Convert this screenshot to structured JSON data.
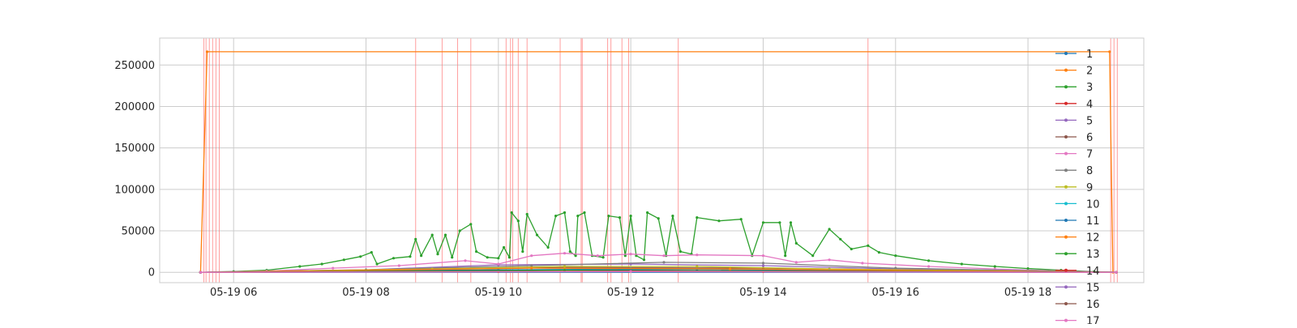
{
  "chart_data": {
    "type": "line",
    "title": "",
    "xlabel": "",
    "ylabel": "",
    "x_time_format": "MM-DD HH",
    "xlim": [
      "2024-05-19T04:53:00",
      "2024-05-19T19:45:00"
    ],
    "ylim": [
      -12500,
      282500
    ],
    "x_ticks": [
      {
        "label": "05-19 06",
        "t": "2024-05-19T06:00:00"
      },
      {
        "label": "05-19 08",
        "t": "2024-05-19T08:00:00"
      },
      {
        "label": "05-19 10",
        "t": "2024-05-19T10:00:00"
      },
      {
        "label": "05-19 12",
        "t": "2024-05-19T12:00:00"
      },
      {
        "label": "05-19 14",
        "t": "2024-05-19T14:00:00"
      },
      {
        "label": "05-19 16",
        "t": "2024-05-19T16:00:00"
      },
      {
        "label": "05-19 18",
        "t": "2024-05-19T18:00:00"
      }
    ],
    "y_ticks": [
      0,
      50000,
      100000,
      150000,
      200000,
      250000
    ],
    "grid": true,
    "legend": "right",
    "event_lines": {
      "color": "#ff7f7f",
      "times": [
        "2024-05-19T05:33:00",
        "2024-05-19T05:35:00",
        "2024-05-19T05:38:00",
        "2024-05-19T05:41:00",
        "2024-05-19T05:44:00",
        "2024-05-19T05:47:00",
        "2024-05-19T08:45:00",
        "2024-05-19T09:09:00",
        "2024-05-19T09:23:00",
        "2024-05-19T09:35:00",
        "2024-05-19T10:07:00",
        "2024-05-19T10:11:00",
        "2024-05-19T10:13:00",
        "2024-05-19T10:18:00",
        "2024-05-19T10:26:00",
        "2024-05-19T10:56:00",
        "2024-05-19T11:15:00",
        "2024-05-19T11:16:00",
        "2024-05-19T11:39:00",
        "2024-05-19T11:42:00",
        "2024-05-19T11:52:00",
        "2024-05-19T11:58:00",
        "2024-05-19T12:43:00",
        "2024-05-19T15:35:00",
        "2024-05-19T19:15:00",
        "2024-05-19T19:18:00",
        "2024-05-19T19:21:00"
      ]
    },
    "series": [
      {
        "name": "1",
        "color": "#1f77b4",
        "points": [
          [
            "2024-05-19T05:30:00",
            0
          ],
          [
            "2024-05-19T19:20:00",
            0
          ]
        ]
      },
      {
        "name": "2",
        "color": "#ff7f0e",
        "points": [
          [
            "2024-05-19T05:30:00",
            0
          ],
          [
            "2024-05-19T05:36:00",
            266000
          ],
          [
            "2024-05-19T19:14:00",
            266000
          ],
          [
            "2024-05-19T19:17:00",
            0
          ]
        ]
      },
      {
        "name": "3",
        "color": "#2ca02c",
        "points": [
          [
            "2024-05-19T05:30:00",
            0
          ],
          [
            "2024-05-19T06:00:00",
            1000
          ],
          [
            "2024-05-19T06:30:00",
            2500
          ],
          [
            "2024-05-19T07:00:00",
            7000
          ],
          [
            "2024-05-19T07:20:00",
            10000
          ],
          [
            "2024-05-19T07:40:00",
            15000
          ],
          [
            "2024-05-19T07:55:00",
            19000
          ],
          [
            "2024-05-19T08:05:00",
            24000
          ],
          [
            "2024-05-19T08:10:00",
            10000
          ],
          [
            "2024-05-19T08:25:00",
            17000
          ],
          [
            "2024-05-19T08:40:00",
            19000
          ],
          [
            "2024-05-19T08:45:00",
            40000
          ],
          [
            "2024-05-19T08:50:00",
            20000
          ],
          [
            "2024-05-19T09:00:00",
            45000
          ],
          [
            "2024-05-19T09:05:00",
            22000
          ],
          [
            "2024-05-19T09:12:00",
            45000
          ],
          [
            "2024-05-19T09:18:00",
            18000
          ],
          [
            "2024-05-19T09:25:00",
            50000
          ],
          [
            "2024-05-19T09:35:00",
            58000
          ],
          [
            "2024-05-19T09:40:00",
            25000
          ],
          [
            "2024-05-19T09:50:00",
            18000
          ],
          [
            "2024-05-19T10:00:00",
            17000
          ],
          [
            "2024-05-19T10:05:00",
            30000
          ],
          [
            "2024-05-19T10:10:00",
            18000
          ],
          [
            "2024-05-19T10:12:00",
            72000
          ],
          [
            "2024-05-19T10:18:00",
            62000
          ],
          [
            "2024-05-19T10:22:00",
            25000
          ],
          [
            "2024-05-19T10:26:00",
            70000
          ],
          [
            "2024-05-19T10:35:00",
            45000
          ],
          [
            "2024-05-19T10:45:00",
            30000
          ],
          [
            "2024-05-19T10:52:00",
            68000
          ],
          [
            "2024-05-19T11:00:00",
            72000
          ],
          [
            "2024-05-19T11:05:00",
            25000
          ],
          [
            "2024-05-19T11:10:00",
            20000
          ],
          [
            "2024-05-19T11:12:00",
            68000
          ],
          [
            "2024-05-19T11:18:00",
            72000
          ],
          [
            "2024-05-19T11:25:00",
            20000
          ],
          [
            "2024-05-19T11:35:00",
            18000
          ],
          [
            "2024-05-19T11:40:00",
            68000
          ],
          [
            "2024-05-19T11:50:00",
            66000
          ],
          [
            "2024-05-19T11:55:00",
            20000
          ],
          [
            "2024-05-19T12:00:00",
            68000
          ],
          [
            "2024-05-19T12:05:00",
            20000
          ],
          [
            "2024-05-19T12:12:00",
            15000
          ],
          [
            "2024-05-19T12:15:00",
            72000
          ],
          [
            "2024-05-19T12:25:00",
            65000
          ],
          [
            "2024-05-19T12:32:00",
            20000
          ],
          [
            "2024-05-19T12:38:00",
            68000
          ],
          [
            "2024-05-19T12:45:00",
            25000
          ],
          [
            "2024-05-19T12:55:00",
            22000
          ],
          [
            "2024-05-19T13:00:00",
            66000
          ],
          [
            "2024-05-19T13:20:00",
            62000
          ],
          [
            "2024-05-19T13:40:00",
            64000
          ],
          [
            "2024-05-19T13:50:00",
            20000
          ],
          [
            "2024-05-19T14:00:00",
            60000
          ],
          [
            "2024-05-19T14:15:00",
            60000
          ],
          [
            "2024-05-19T14:20:00",
            20000
          ],
          [
            "2024-05-19T14:25:00",
            60000
          ],
          [
            "2024-05-19T14:30:00",
            35000
          ],
          [
            "2024-05-19T14:45:00",
            20000
          ],
          [
            "2024-05-19T15:00:00",
            52000
          ],
          [
            "2024-05-19T15:10:00",
            40000
          ],
          [
            "2024-05-19T15:20:00",
            28000
          ],
          [
            "2024-05-19T15:35:00",
            32000
          ],
          [
            "2024-05-19T15:45:00",
            24000
          ],
          [
            "2024-05-19T16:00:00",
            20000
          ],
          [
            "2024-05-19T16:30:00",
            14000
          ],
          [
            "2024-05-19T17:00:00",
            10000
          ],
          [
            "2024-05-19T17:30:00",
            7000
          ],
          [
            "2024-05-19T18:00:00",
            4500
          ],
          [
            "2024-05-19T18:30:00",
            2500
          ],
          [
            "2024-05-19T19:00:00",
            800
          ],
          [
            "2024-05-19T19:20:00",
            0
          ]
        ]
      },
      {
        "name": "4",
        "color": "#d62728",
        "points": [
          [
            "2024-05-19T05:30:00",
            0
          ],
          [
            "2024-05-19T10:00:00",
            800
          ],
          [
            "2024-05-19T14:00:00",
            800
          ],
          [
            "2024-05-19T19:20:00",
            0
          ]
        ]
      },
      {
        "name": "5",
        "color": "#9467bd",
        "points": [
          [
            "2024-05-19T05:30:00",
            0
          ],
          [
            "2024-05-19T08:00:00",
            3000
          ],
          [
            "2024-05-19T10:00:00",
            9000
          ],
          [
            "2024-05-19T12:00:00",
            10000
          ],
          [
            "2024-05-19T14:00:00",
            8000
          ],
          [
            "2024-05-19T16:00:00",
            4000
          ],
          [
            "2024-05-19T19:20:00",
            0
          ]
        ]
      },
      {
        "name": "6",
        "color": "#8c564b",
        "points": [
          [
            "2024-05-19T05:30:00",
            0
          ],
          [
            "2024-05-19T08:00:00",
            2000
          ],
          [
            "2024-05-19T11:00:00",
            6000
          ],
          [
            "2024-05-19T14:00:00",
            5000
          ],
          [
            "2024-05-19T17:00:00",
            2000
          ],
          [
            "2024-05-19T19:20:00",
            0
          ]
        ]
      },
      {
        "name": "7",
        "color": "#e377c2",
        "points": [
          [
            "2024-05-19T05:30:00",
            0
          ],
          [
            "2024-05-19T06:30:00",
            1500
          ],
          [
            "2024-05-19T07:30:00",
            5000
          ],
          [
            "2024-05-19T08:30:00",
            8000
          ],
          [
            "2024-05-19T09:30:00",
            14000
          ],
          [
            "2024-05-19T10:00:00",
            10000
          ],
          [
            "2024-05-19T10:30:00",
            20000
          ],
          [
            "2024-05-19T11:00:00",
            23000
          ],
          [
            "2024-05-19T11:30:00",
            20000
          ],
          [
            "2024-05-19T12:00:00",
            22000
          ],
          [
            "2024-05-19T12:30:00",
            20000
          ],
          [
            "2024-05-19T13:00:00",
            21000
          ],
          [
            "2024-05-19T14:00:00",
            20000
          ],
          [
            "2024-05-19T14:30:00",
            12000
          ],
          [
            "2024-05-19T15:00:00",
            15000
          ],
          [
            "2024-05-19T15:30:00",
            11000
          ],
          [
            "2024-05-19T16:30:00",
            7000
          ],
          [
            "2024-05-19T17:30:00",
            4000
          ],
          [
            "2024-05-19T18:30:00",
            1500
          ],
          [
            "2024-05-19T19:20:00",
            0
          ]
        ]
      },
      {
        "name": "8",
        "color": "#7f7f7f",
        "points": [
          [
            "2024-05-19T05:30:00",
            0
          ],
          [
            "2024-05-19T08:00:00",
            3000
          ],
          [
            "2024-05-19T10:30:00",
            8000
          ],
          [
            "2024-05-19T12:30:00",
            12000
          ],
          [
            "2024-05-19T14:00:00",
            11000
          ],
          [
            "2024-05-19T16:00:00",
            5000
          ],
          [
            "2024-05-19T19:20:00",
            0
          ]
        ]
      },
      {
        "name": "9",
        "color": "#bcbd22",
        "points": [
          [
            "2024-05-19T05:30:00",
            0
          ],
          [
            "2024-05-19T09:00:00",
            4000
          ],
          [
            "2024-05-19T11:00:00",
            7000
          ],
          [
            "2024-05-19T13:00:00",
            7000
          ],
          [
            "2024-05-19T15:00:00",
            4000
          ],
          [
            "2024-05-19T19:20:00",
            0
          ]
        ]
      },
      {
        "name": "10",
        "color": "#17becf",
        "points": [
          [
            "2024-05-19T05:30:00",
            0
          ],
          [
            "2024-05-19T09:00:00",
            2000
          ],
          [
            "2024-05-19T12:00:00",
            4000
          ],
          [
            "2024-05-19T15:00:00",
            2500
          ],
          [
            "2024-05-19T19:20:00",
            0
          ]
        ]
      },
      {
        "name": "11",
        "color": "#1f77b4",
        "points": [
          [
            "2024-05-19T05:30:00",
            0
          ],
          [
            "2024-05-19T10:00:00",
            3000
          ],
          [
            "2024-05-19T13:00:00",
            3500
          ],
          [
            "2024-05-19T19:20:00",
            0
          ]
        ]
      },
      {
        "name": "12",
        "color": "#ff7f0e",
        "points": [
          [
            "2024-05-19T05:30:00",
            0
          ],
          [
            "2024-05-19T10:30:00",
            5000
          ],
          [
            "2024-05-19T13:30:00",
            4000
          ],
          [
            "2024-05-19T19:20:00",
            0
          ]
        ]
      },
      {
        "name": "13",
        "color": "#2ca02c",
        "points": [
          [
            "2024-05-19T05:30:00",
            0
          ],
          [
            "2024-05-19T11:00:00",
            2500
          ],
          [
            "2024-05-19T19:20:00",
            0
          ]
        ]
      },
      {
        "name": "14",
        "color": "#d62728",
        "points": [
          [
            "2024-05-19T05:30:00",
            0
          ],
          [
            "2024-05-19T12:00:00",
            1500
          ],
          [
            "2024-05-19T19:20:00",
            0
          ]
        ]
      },
      {
        "name": "15",
        "color": "#9467bd",
        "points": [
          [
            "2024-05-19T05:30:00",
            0
          ],
          [
            "2024-05-19T12:00:00",
            1200
          ],
          [
            "2024-05-19T19:20:00",
            0
          ]
        ]
      },
      {
        "name": "16",
        "color": "#8c564b",
        "points": [
          [
            "2024-05-19T05:30:00",
            0
          ],
          [
            "2024-05-19T12:00:00",
            1000
          ],
          [
            "2024-05-19T19:20:00",
            0
          ]
        ]
      },
      {
        "name": "17",
        "color": "#e377c2",
        "points": [
          [
            "2024-05-19T05:30:00",
            0
          ],
          [
            "2024-05-19T12:00:00",
            800
          ],
          [
            "2024-05-19T19:20:00",
            0
          ]
        ]
      }
    ]
  }
}
